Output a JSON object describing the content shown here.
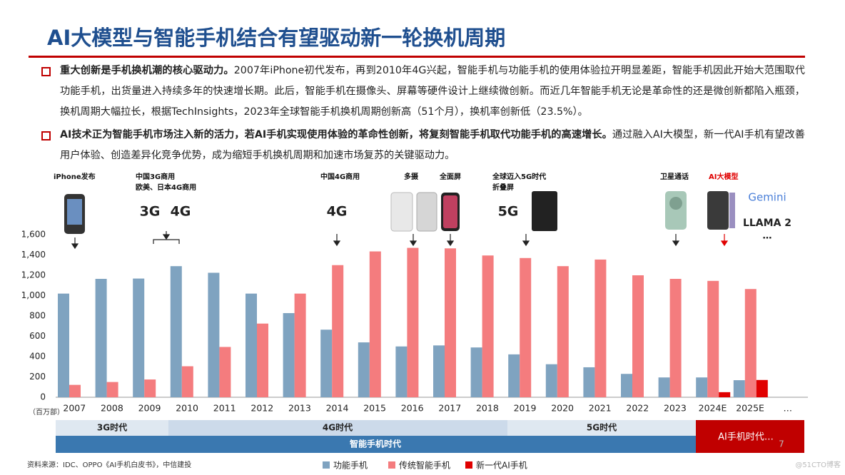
{
  "header": {
    "title": "AI大模型与智能手机结合有望驱动新一轮换机周期"
  },
  "bullets": [
    {
      "bold": "重大创新是手机换机潮的核心驱动力。",
      "text": "2007年iPhone初代发布，再到2010年4G兴起，智能手机与功能手机的使用体验拉开明显差距，智能手机因此开始大范围取代功能手机，出货量进入持续多年的快速增长期。此后，智能手机在摄像头、屏幕等硬件设计上继续微创新。而近几年智能手机无论是革命性的还是微创新都陷入瓶颈，换机周期大幅拉长，根据TechInsights，2023年全球智能手机换机周期创新高（51个月），换机率创新低（23.5%）。"
    },
    {
      "bold": "AI技术正为智能手机市场注入新的活力，若AI手机实现使用体验的革命性创新，将复刻智能手机取代功能手机的高速增长。",
      "text": "通过融入AI大模型，新一代AI手机有望改善用户体验、创造差异化竞争优势，成为缩短手机换机周期和加速市场复苏的关键驱动力。"
    }
  ],
  "chart_data": {
    "type": "bar",
    "y_unit": "（百万部）",
    "categories": [
      "2007",
      "2008",
      "2009",
      "2010",
      "2011",
      "2012",
      "2013",
      "2014",
      "2015",
      "2016",
      "2017",
      "2018",
      "2019",
      "2020",
      "2021",
      "2022",
      "2023",
      "2024E",
      "2025E",
      "…"
    ],
    "series": [
      {
        "name": "功能手机",
        "color": "#7fa3c0",
        "values": [
          1020,
          1165,
          1168,
          1290,
          1225,
          1020,
          828,
          665,
          540,
          500,
          510,
          490,
          422,
          325,
          295,
          230,
          195,
          195,
          168,
          null
        ]
      },
      {
        "name": "传统智能手机",
        "color": "#f47c7e",
        "values": [
          122,
          150,
          175,
          305,
          495,
          725,
          1020,
          1300,
          1435,
          1470,
          1465,
          1395,
          1370,
          1290,
          1355,
          1200,
          1165,
          1145,
          1065,
          null
        ]
      },
      {
        "name": "新一代AI手机",
        "color": "#e00000",
        "values": [
          null,
          null,
          null,
          null,
          null,
          null,
          null,
          null,
          null,
          null,
          null,
          null,
          null,
          null,
          null,
          null,
          null,
          50,
          170,
          null
        ]
      }
    ],
    "ylim": [
      0,
      1600
    ],
    "yticks": [
      0,
      200,
      400,
      600,
      800,
      {
        "value": 1000,
        "label": "1,000"
      },
      {
        "value": 1200,
        "label": "1,200"
      },
      {
        "value": 1400,
        "label": "1,400"
      },
      {
        "value": 1600,
        "label": "1,600"
      }
    ],
    "grid": false
  },
  "annotations": [
    [
      "iPhone发布"
    ],
    [
      "中国3G商用",
      "欧美、日本4G商用"
    ],
    [
      "中国4G商用"
    ],
    [
      "多摄"
    ],
    [
      "全面屏"
    ],
    [
      "全球迈入5G时代",
      "折叠屏"
    ],
    [
      "卫星通话"
    ],
    [
      "AI大模型"
    ]
  ],
  "icon_labels": [
    "3G",
    "4G",
    "4G",
    "5G"
  ],
  "ai_models": [
    "Gemini",
    "LLAMA 2",
    "…"
  ],
  "eras": {
    "row1": [
      "3G时代",
      "4G时代",
      "5G时代"
    ],
    "row2": "智能手机时代",
    "ai": "AI手机时代…"
  },
  "page_number": "7",
  "source": "资料来源：IDC、OPPO《AI手机白皮书》，中信建投",
  "watermark": "@51CTO博客"
}
